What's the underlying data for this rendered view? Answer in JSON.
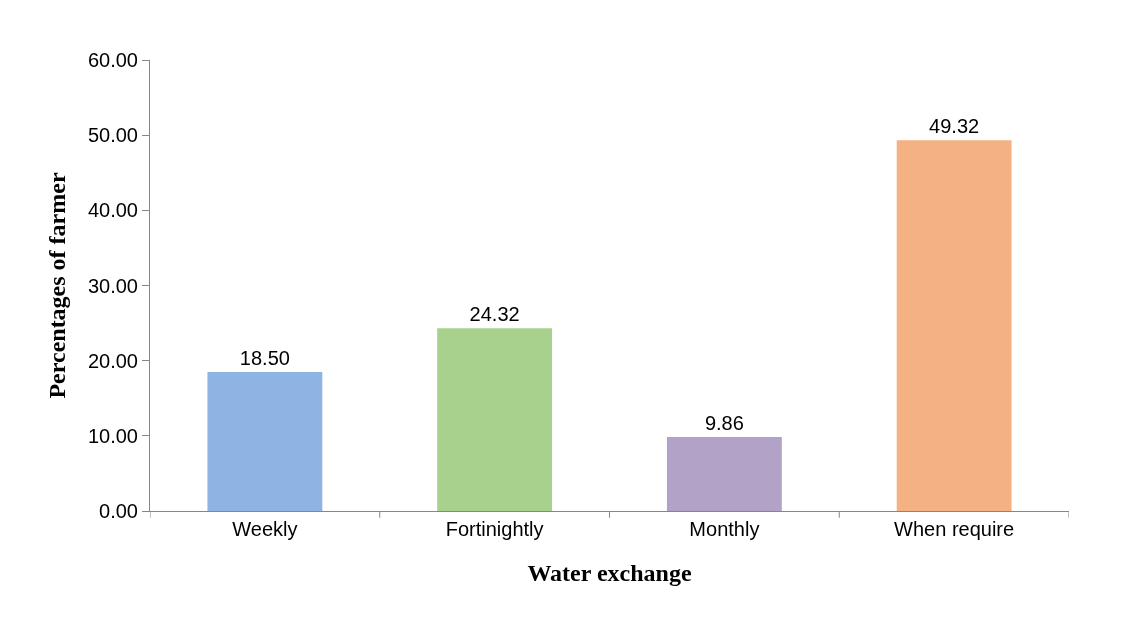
{
  "chart_data": {
    "type": "bar",
    "xlabel": "Water exchange",
    "ylabel": "Percentages of farmer",
    "categories": [
      "Weekly",
      "Fortinightly",
      "Monthly",
      "When require"
    ],
    "values": [
      18.5,
      24.32,
      9.86,
      49.32
    ],
    "colors": [
      "#8eb4e3",
      "#a9d18e",
      "#b3a2c7",
      "#f4b183"
    ],
    "value_labels": [
      "18.50",
      "24.32",
      "9.86",
      "49.32"
    ],
    "ylim": [
      0,
      60
    ],
    "yticks": [
      {
        "value": 0,
        "label": "0.00"
      },
      {
        "value": 10,
        "label": "10.00"
      },
      {
        "value": 20,
        "label": "20.00"
      },
      {
        "value": 30,
        "label": "30.00"
      },
      {
        "value": 40,
        "label": "40.00"
      },
      {
        "value": 50,
        "label": "50.00"
      },
      {
        "value": 60,
        "label": "60.00"
      }
    ],
    "grid": false
  }
}
